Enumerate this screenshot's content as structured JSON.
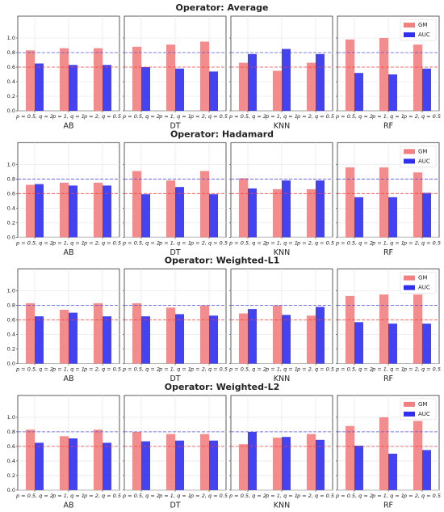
{
  "chart_data": [
    {
      "type": "bar",
      "title": "Operator: Average",
      "categories": [
        "p = 0.5, q = 2",
        "p = 1, q = 1",
        "p = 2, q = 0.5"
      ],
      "panels": [
        "AB",
        "DT",
        "KNN",
        "RF"
      ],
      "series": [
        {
          "name": "GM",
          "color": "#f28080",
          "values": [
            [
              0.83,
              0.86,
              0.86
            ],
            [
              0.88,
              0.91,
              0.95
            ],
            [
              0.66,
              0.55,
              0.66
            ],
            [
              0.98,
              1.0,
              0.91
            ]
          ]
        },
        {
          "name": "AUC",
          "color": "#2f2ff0",
          "values": [
            [
              0.65,
              0.63,
              0.63
            ],
            [
              0.6,
              0.58,
              0.54
            ],
            [
              0.78,
              0.85,
              0.78
            ],
            [
              0.52,
              0.5,
              0.58
            ]
          ]
        }
      ],
      "hlines": [
        {
          "value": 0.8,
          "color": "#5555dd"
        },
        {
          "value": 0.6,
          "color": "#ee4444"
        }
      ],
      "ylim": [
        0,
        1.3
      ],
      "yticks": [
        {
          "value": 0,
          "label": "0.0"
        },
        0.2,
        0.4,
        0.6,
        0.8,
        {
          "value": 1,
          "label": "1.0"
        }
      ],
      "grid": true,
      "legend": "upper right",
      "legend_panel": 3
    },
    {
      "type": "bar",
      "title": "Operator: Hadamard",
      "categories": [
        "p = 0.5, q = 2",
        "p = 1, q = 1",
        "p = 2, q = 0.5"
      ],
      "panels": [
        "AB",
        "DT",
        "KNN",
        "RF"
      ],
      "series": [
        {
          "name": "GM",
          "color": "#f28080",
          "values": [
            [
              0.72,
              0.75,
              0.75
            ],
            [
              0.91,
              0.78,
              0.91
            ],
            [
              0.81,
              0.66,
              0.66
            ],
            [
              0.96,
              0.96,
              0.89
            ]
          ]
        },
        {
          "name": "AUC",
          "color": "#2f2ff0",
          "values": [
            [
              0.73,
              0.71,
              0.71
            ],
            [
              0.59,
              0.69,
              0.59
            ],
            [
              0.67,
              0.78,
              0.78
            ],
            [
              0.55,
              0.55,
              0.61
            ]
          ]
        }
      ],
      "hlines": [
        {
          "value": 0.8,
          "color": "#5555dd"
        },
        {
          "value": 0.6,
          "color": "#ee4444"
        }
      ],
      "ylim": [
        0,
        1.3
      ],
      "yticks": [
        {
          "value": 0,
          "label": "0.0"
        },
        0.2,
        0.4,
        0.6,
        0.8,
        {
          "value": 1,
          "label": "1.0"
        }
      ],
      "grid": true,
      "legend": "upper right",
      "legend_panel": 3
    },
    {
      "type": "bar",
      "title": "Operator: Weighted-L1",
      "categories": [
        "p = 0.5, q = 2",
        "p = 1, q = 1",
        "p = 2, q = 0.5"
      ],
      "panels": [
        "AB",
        "DT",
        "KNN",
        "RF"
      ],
      "series": [
        {
          "name": "GM",
          "color": "#f28080",
          "values": [
            [
              0.83,
              0.74,
              0.83
            ],
            [
              0.83,
              0.77,
              0.8
            ],
            [
              0.69,
              0.8,
              0.66
            ],
            [
              0.93,
              0.95,
              0.95
            ]
          ]
        },
        {
          "name": "AUC",
          "color": "#2f2ff0",
          "values": [
            [
              0.65,
              0.7,
              0.65
            ],
            [
              0.65,
              0.68,
              0.66
            ],
            [
              0.75,
              0.67,
              0.78
            ],
            [
              0.57,
              0.55,
              0.55
            ]
          ]
        }
      ],
      "hlines": [
        {
          "value": 0.8,
          "color": "#5555dd"
        },
        {
          "value": 0.6,
          "color": "#ee4444"
        }
      ],
      "ylim": [
        0,
        1.3
      ],
      "yticks": [
        {
          "value": 0,
          "label": "0.0"
        },
        0.2,
        0.4,
        0.6,
        0.8,
        {
          "value": 1,
          "label": "1.0"
        }
      ],
      "grid": true,
      "legend": "upper right",
      "legend_panel": 3
    },
    {
      "type": "bar",
      "title": "Operator: Weighted-L2",
      "categories": [
        "p = 0.5, q = 2",
        "p = 1, q = 1",
        "p = 2, q = 0.5"
      ],
      "panels": [
        "AB",
        "DT",
        "KNN",
        "RF"
      ],
      "series": [
        {
          "name": "GM",
          "color": "#f28080",
          "values": [
            [
              0.83,
              0.74,
              0.83
            ],
            [
              0.8,
              0.77,
              0.77
            ],
            [
              0.63,
              0.72,
              0.77
            ],
            [
              0.88,
              1.0,
              0.95
            ]
          ]
        },
        {
          "name": "AUC",
          "color": "#2f2ff0",
          "values": [
            [
              0.65,
              0.71,
              0.65
            ],
            [
              0.67,
              0.68,
              0.68
            ],
            [
              0.8,
              0.73,
              0.69
            ],
            [
              0.61,
              0.5,
              0.55
            ]
          ]
        }
      ],
      "hlines": [
        {
          "value": 0.8,
          "color": "#5555dd"
        },
        {
          "value": 0.6,
          "color": "#ee4444"
        }
      ],
      "ylim": [
        0,
        1.3
      ],
      "yticks": [
        {
          "value": 0,
          "label": "0.0"
        },
        0.2,
        0.4,
        0.6,
        0.8,
        {
          "value": 1,
          "label": "1.0"
        }
      ],
      "grid": true,
      "legend": "upper right",
      "legend_panel": 3
    }
  ]
}
